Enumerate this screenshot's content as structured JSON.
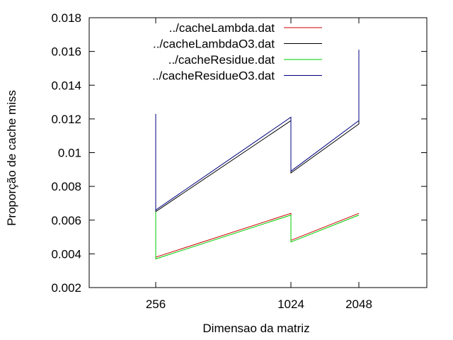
{
  "chart_data": {
    "type": "line",
    "xlabel": "Dimensao da matriz",
    "ylabel": "Proporção de cache miss",
    "x_ticks": [
      "256",
      "1024",
      "2048"
    ],
    "y_ticks": [
      "0.002",
      "0.004",
      "0.006",
      "0.008",
      "0.01",
      "0.012",
      "0.014",
      "0.016",
      "0.018"
    ],
    "ylim": [
      0.002,
      0.018
    ],
    "legend_position": "top-right",
    "grid": false,
    "series": [
      {
        "name": "../cacheLambda.dat",
        "color": "#cc0000",
        "points": [
          [
            256,
            0.0066
          ],
          [
            256,
            0.0038
          ],
          [
            1024,
            0.0064
          ],
          [
            1024,
            0.0048
          ],
          [
            2048,
            0.0064
          ]
        ]
      },
      {
        "name": "../cacheLambdaO3.dat",
        "color": "#000000",
        "points": [
          [
            256,
            0.0121
          ],
          [
            256,
            0.0065
          ],
          [
            1024,
            0.0119
          ],
          [
            1024,
            0.0088
          ],
          [
            2048,
            0.0117
          ],
          [
            2048,
            0.0159
          ]
        ]
      },
      {
        "name": "../cacheResidue.dat",
        "color": "#00cc00",
        "points": [
          [
            256,
            0.0065
          ],
          [
            256,
            0.0037
          ],
          [
            1024,
            0.0063
          ],
          [
            1024,
            0.0047
          ],
          [
            2048,
            0.0063
          ]
        ]
      },
      {
        "name": "../cacheResidueO3.dat",
        "color": "#000080",
        "points": [
          [
            256,
            0.0123
          ],
          [
            256,
            0.0066
          ],
          [
            1024,
            0.0121
          ],
          [
            1024,
            0.0089
          ],
          [
            2048,
            0.0119
          ],
          [
            2048,
            0.0161
          ]
        ]
      }
    ]
  }
}
